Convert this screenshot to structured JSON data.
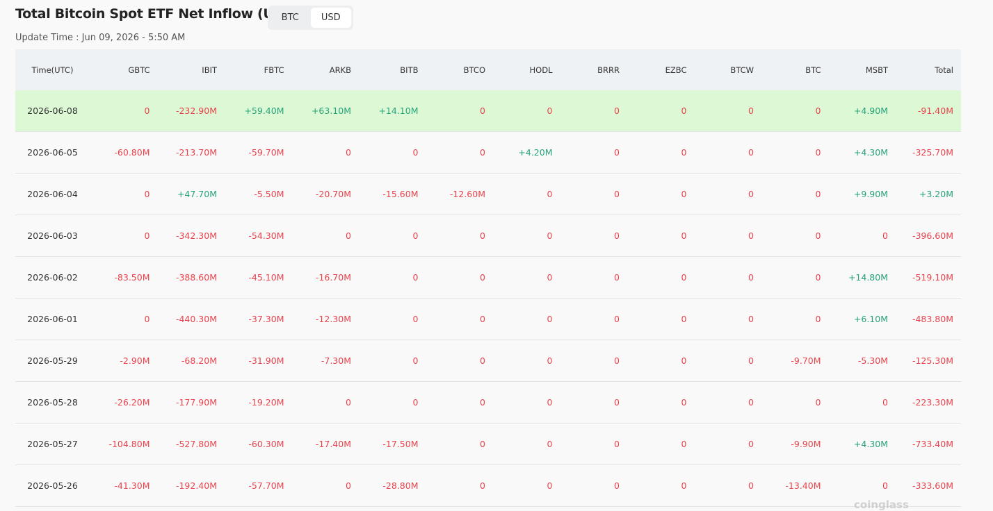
{
  "header": {
    "title": "Total Bitcoin Spot ETF Net Inflow (USD)",
    "toggle": [
      "BTC",
      "USD"
    ],
    "update_time": "Update Time : Jun 09, 2026 - 5:50 AM"
  },
  "table": {
    "columns": [
      "Time(UTC)",
      "GBTC",
      "IBIT",
      "FBTC",
      "ARKB",
      "BITB",
      "BTCO",
      "HODL",
      "BRRR",
      "EZBC",
      "BTCW",
      "BTC",
      "MSBT",
      "Total"
    ],
    "rows": [
      [
        "2026-06-08",
        "0",
        "-232.90M",
        "+59.40M",
        "+63.10M",
        "+14.10M",
        "0",
        "0",
        "0",
        "0",
        "0",
        "0",
        "+4.90M",
        "-91.40M"
      ],
      [
        "2026-06-05",
        "-60.80M",
        "-213.70M",
        "-59.70M",
        "0",
        "0",
        "0",
        "+4.20M",
        "0",
        "0",
        "0",
        "0",
        "+4.30M",
        "-325.70M"
      ],
      [
        "2026-06-04",
        "0",
        "+47.70M",
        "-5.50M",
        "-20.70M",
        "-15.60M",
        "-12.60M",
        "0",
        "0",
        "0",
        "0",
        "0",
        "+9.90M",
        "+3.20M"
      ],
      [
        "2026-06-03",
        "0",
        "-342.30M",
        "-54.30M",
        "0",
        "0",
        "0",
        "0",
        "0",
        "0",
        "0",
        "0",
        "0",
        "-396.60M"
      ],
      [
        "2026-06-02",
        "-83.50M",
        "-388.60M",
        "-45.10M",
        "-16.70M",
        "0",
        "0",
        "0",
        "0",
        "0",
        "0",
        "0",
        "+14.80M",
        "-519.10M"
      ],
      [
        "2026-06-01",
        "0",
        "-440.30M",
        "-37.30M",
        "-12.30M",
        "0",
        "0",
        "0",
        "0",
        "0",
        "0",
        "0",
        "+6.10M",
        "-483.80M"
      ],
      [
        "2026-05-29",
        "-2.90M",
        "-68.20M",
        "-31.90M",
        "-7.30M",
        "0",
        "0",
        "0",
        "0",
        "0",
        "0",
        "-9.70M",
        "-5.30M",
        "-125.30M"
      ],
      [
        "2026-05-28",
        "-26.20M",
        "-177.90M",
        "-19.20M",
        "0",
        "0",
        "0",
        "0",
        "0",
        "0",
        "0",
        "0",
        "0",
        "-223.30M"
      ],
      [
        "2026-05-27",
        "-104.80M",
        "-527.80M",
        "-60.30M",
        "-17.40M",
        "-17.50M",
        "0",
        "0",
        "0",
        "0",
        "0",
        "-9.90M",
        "+4.30M",
        "-733.40M"
      ],
      [
        "2026-05-26",
        "-41.30M",
        "-192.40M",
        "-57.70M",
        "0",
        "-28.80M",
        "0",
        "0",
        "0",
        "0",
        "0",
        "-13.40M",
        "0",
        "-333.60M"
      ]
    ]
  },
  "watermark": "coinglass"
}
